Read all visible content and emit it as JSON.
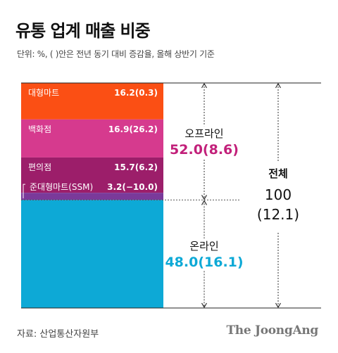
{
  "title": "유통 업계 매출 비중",
  "unit_note": "단위: %, ( )안은 전년 동기 대비 증감율, 올해 상반기 기준",
  "source": "자료: 산업통산자원부",
  "logo": "The JoongAng",
  "chart_data": {
    "type": "bar",
    "stacked": true,
    "segments": [
      {
        "name": "대형마트",
        "value": 16.2,
        "change": 0.3,
        "label": "16.2(0.3)",
        "color": "#fb4f14",
        "group": "offline"
      },
      {
        "name": "백화점",
        "value": 16.9,
        "change": 26.2,
        "label": "16.9(26.2)",
        "color": "#d63a8e",
        "group": "offline"
      },
      {
        "name": "편의점",
        "value": 15.7,
        "change": 6.2,
        "label": "15.7(6.2)",
        "color": "#9c1e6a",
        "group": "offline"
      },
      {
        "name": "준대형마트(SSM)",
        "value": 3.2,
        "change": -10.0,
        "label": "3.2(−10.0)",
        "color": "#7a3a9a",
        "group": "offline"
      },
      {
        "name": "",
        "value": 48.0,
        "change": 16.1,
        "label": "",
        "color": "#0da9d6",
        "group": "online"
      }
    ],
    "groups": [
      {
        "id": "offline",
        "name": "오프라인",
        "value_label": "52.0(8.6)",
        "value": 52.0,
        "change": 8.6,
        "color": "#c2207a"
      },
      {
        "id": "online",
        "name": "온라인",
        "value_label": "48.0(16.1)",
        "value": 48.0,
        "change": 16.1,
        "color": "#0da9d6"
      }
    ],
    "total": {
      "name": "전체",
      "value": "100",
      "change": "(12.1)"
    }
  }
}
